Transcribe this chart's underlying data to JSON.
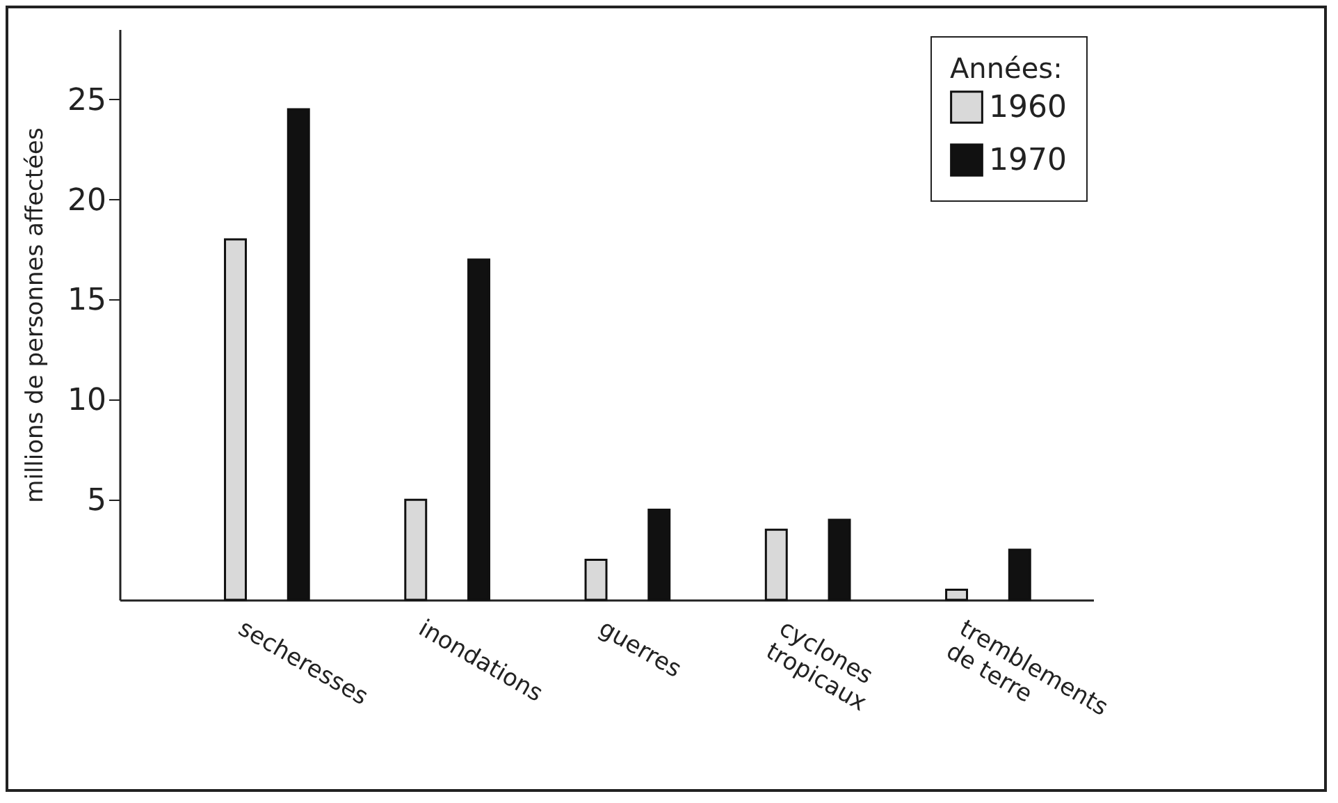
{
  "chart_data": {
    "type": "bar",
    "ylabel": "millions de personnes affectées",
    "legend_title": "Années:",
    "categories": [
      "secheresses",
      "inondations",
      "guerres",
      "cyclones\ntropicaux",
      "tremblements\nde terre"
    ],
    "series": [
      {
        "name": "1960",
        "color": "#d9d9d9",
        "values": [
          18,
          5,
          2,
          3.5,
          0.5
        ]
      },
      {
        "name": "1970",
        "color": "#111111",
        "values": [
          24.5,
          17,
          4.5,
          4,
          2.5
        ]
      }
    ],
    "ylim": [
      0,
      28.5
    ],
    "yticks": [
      5,
      10,
      15,
      20,
      25
    ],
    "grid": false,
    "legend": "top right"
  }
}
